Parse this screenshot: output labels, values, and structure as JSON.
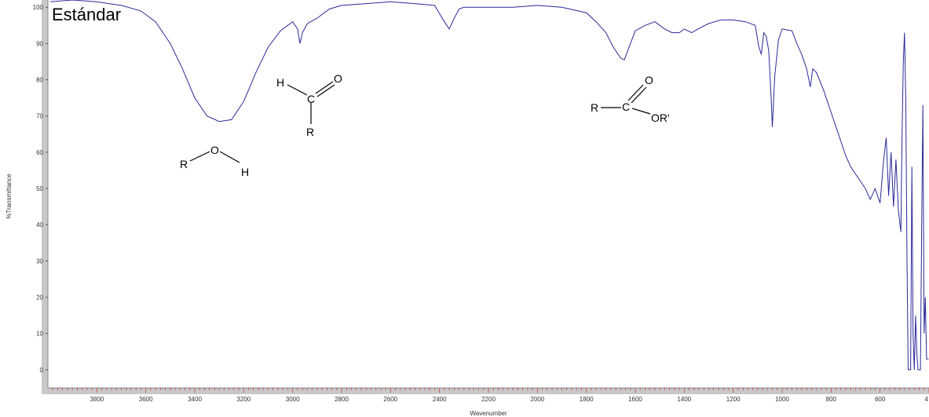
{
  "chart_data": {
    "type": "line",
    "title": "Estándar",
    "xlabel": "Wavenumber",
    "ylabel": "%Transmittance",
    "x_reversed": true,
    "xlim": [
      4000,
      400
    ],
    "ylim": [
      -5,
      102
    ],
    "x_ticks": [
      "3800",
      "3600",
      "3400",
      "3200",
      "3000",
      "2800",
      "2600",
      "2400",
      "2200",
      "2000",
      "1800",
      "1600",
      "1400",
      "1200",
      "1000",
      "800",
      "600",
      "4"
    ],
    "y_ticks": [
      "100",
      "90",
      "80",
      "70",
      "60",
      "50",
      "40",
      "30",
      "20",
      "10",
      "0"
    ],
    "grid": false,
    "colors": {
      "line": "#2a2a9a",
      "plot_border": "#c8c8c8",
      "x_axis_ticks": "#d04040"
    },
    "series": [
      {
        "x": [
          3990,
          3900,
          3800,
          3700,
          3620,
          3560,
          3500,
          3450,
          3400,
          3350,
          3300,
          3250,
          3200,
          3150,
          3100,
          3050,
          3000,
          2980,
          2970,
          2960,
          2940,
          2900,
          2850,
          2800,
          2700,
          2600,
          2500,
          2420,
          2380,
          2360,
          2340,
          2320,
          2300,
          2200,
          2100,
          2000,
          1900,
          1800,
          1760,
          1720,
          1690,
          1660,
          1645,
          1620,
          1600,
          1560,
          1520,
          1480,
          1450,
          1420,
          1400,
          1370,
          1330,
          1300,
          1250,
          1200,
          1150,
          1110,
          1095,
          1085,
          1075,
          1065,
          1055,
          1045,
          1040,
          1030,
          1015,
          1000,
          960,
          940,
          920,
          900,
          885,
          875,
          860,
          830,
          800,
          770,
          740,
          720,
          700,
          660,
          640,
          620,
          600,
          585,
          575,
          565,
          555,
          545,
          535,
          525,
          515,
          510,
          505,
          500,
          495,
          490,
          485,
          480,
          475,
          470,
          465,
          460,
          455,
          450,
          445,
          440,
          435,
          430,
          425,
          420,
          415,
          410,
          402
        ],
        "y": [
          101.5,
          102,
          101.5,
          100.5,
          99,
          96,
          90,
          83,
          75,
          70,
          68.5,
          69,
          74,
          82,
          89,
          93.5,
          96,
          94,
          90,
          93,
          95.5,
          97,
          99.5,
          100.5,
          101,
          101.5,
          101,
          100.5,
          96,
          94,
          97,
          99.5,
          100,
          100,
          100,
          100.5,
          100,
          98.5,
          96,
          93,
          89,
          86,
          85.5,
          90,
          93.5,
          95,
          96,
          94,
          93,
          93,
          94,
          93,
          94.5,
          95.5,
          96.5,
          96.5,
          96,
          95,
          89,
          87,
          93,
          92,
          88,
          75,
          67,
          81,
          91,
          94,
          93.5,
          90,
          87,
          83,
          78,
          83,
          82,
          77,
          71,
          65,
          59,
          56,
          54,
          50,
          47,
          50,
          46,
          58,
          64,
          48,
          60,
          45,
          58,
          44,
          38,
          65,
          85,
          93,
          75,
          30,
          0,
          0,
          0,
          56,
          10,
          0,
          15,
          5,
          0,
          0,
          0,
          40,
          73,
          10,
          20,
          3,
          3
        ]
      }
    ],
    "annotations": [
      {
        "atoms": [
          "R",
          "O",
          "H"
        ]
      },
      {
        "atoms": [
          "H",
          "C",
          "O",
          "R"
        ]
      },
      {
        "atoms": [
          "R",
          "C",
          "O",
          "OR'"
        ]
      }
    ]
  }
}
